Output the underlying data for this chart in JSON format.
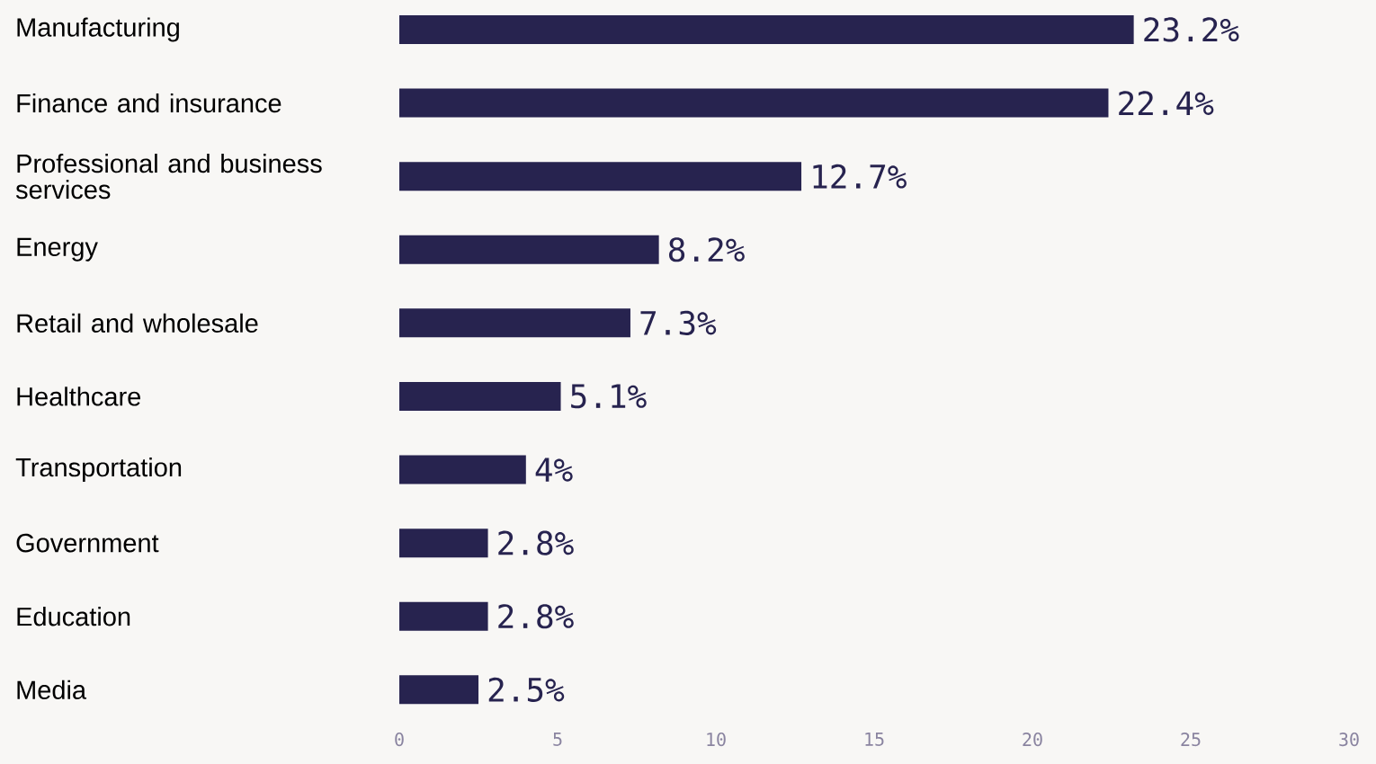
{
  "chart_data": {
    "type": "bar",
    "orientation": "horizontal",
    "categories": [
      "Manufacturing",
      "Finance and insurance",
      "Professional and business services",
      "Energy",
      "Retail and wholesale",
      "Healthcare",
      "Transportation",
      "Government",
      "Education",
      "Media"
    ],
    "values": [
      23.2,
      22.4,
      12.7,
      8.2,
      7.3,
      5.1,
      4,
      2.8,
      2.8,
      2.5
    ],
    "value_labels": [
      "23.2%",
      "22.4%",
      "12.7%",
      "8.2%",
      "7.3%",
      "5.1%",
      "4%",
      "2.8%",
      "2.8%",
      "2.5%"
    ],
    "color": "#27234f",
    "xlim": [
      0,
      30
    ],
    "xticks": [
      0,
      5,
      10,
      15,
      20,
      25,
      30
    ]
  }
}
